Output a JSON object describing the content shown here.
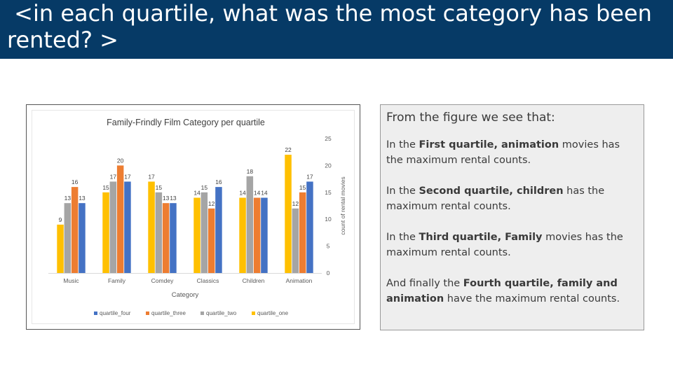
{
  "header": {
    "title": " <in each quartile, what was the most category has been rented? >"
  },
  "chart_data": {
    "type": "bar",
    "title": "Family-Frindly Film Category per quartile",
    "xlabel": "Category",
    "ylabel": "count of rental movies",
    "categories": [
      "Music",
      "Family",
      "Comdey",
      "Classics",
      "Children",
      "Animation"
    ],
    "series": [
      {
        "name": "quartile_one",
        "color": "#ffc000",
        "values": [
          9,
          15,
          17,
          14,
          14,
          22
        ]
      },
      {
        "name": "quartile_two",
        "color": "#a5a5a5",
        "values": [
          13,
          17,
          15,
          15,
          18,
          12
        ]
      },
      {
        "name": "quartile_three",
        "color": "#ed7d31",
        "values": [
          16,
          20,
          13,
          12,
          14,
          15
        ]
      },
      {
        "name": "quartile_four",
        "color": "#4472c4",
        "values": [
          13,
          17,
          13,
          16,
          14,
          17
        ]
      }
    ],
    "legend_order": [
      "quartile_four",
      "quartile_three",
      "quartile_two",
      "quartile_one"
    ],
    "ylim": [
      0,
      25
    ],
    "yticks": [
      0,
      5,
      10,
      15,
      20,
      25
    ],
    "y_axis_side": "right",
    "legend_position": "bottom",
    "grid": false
  },
  "notes": {
    "heading": "From the figure we see that:",
    "paragraphs": [
      [
        {
          "t": "In the "
        },
        {
          "t": "First quartile, animation",
          "b": true
        },
        {
          "t": " movies has the maximum rental counts."
        }
      ],
      [
        {
          "t": "In the "
        },
        {
          "t": "Second quartile, children",
          "b": true
        },
        {
          "t": " has the maximum rental counts."
        }
      ],
      [
        {
          "t": "In the "
        },
        {
          "t": "Third quartile, Family",
          "b": true
        },
        {
          "t": " movies has the maximum rental counts."
        }
      ],
      [
        {
          "t": "And finally the "
        },
        {
          "t": "Fourth quartile, family and animation",
          "b": true
        },
        {
          "t": " have the maximum rental counts."
        }
      ]
    ]
  }
}
